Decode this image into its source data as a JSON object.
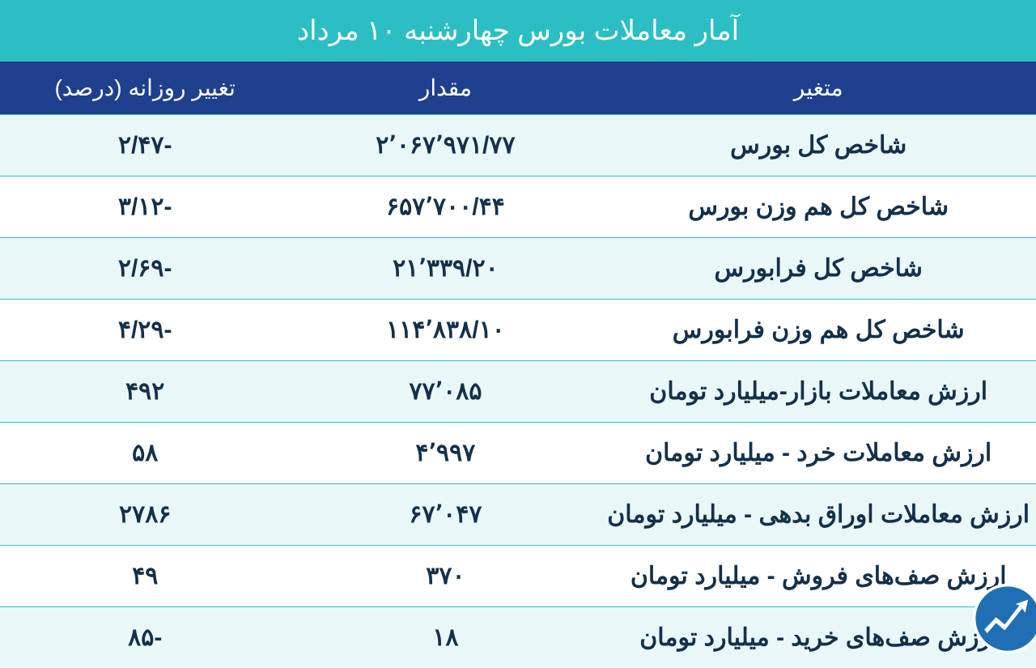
{
  "title": "آمار معاملات بورس چهارشنبه ۱۰ مرداد",
  "title_bg": "#2bbfc3",
  "title_color": "#ffffff",
  "title_fontsize": 34,
  "header_bg": "#1f3f8f",
  "header_color": "#ffffff",
  "header_fontsize": 28,
  "columns": [
    "متغیر",
    "مقدار",
    "تغییر روزانه (درصد)"
  ],
  "row_alt_bg": "#e9f7f8",
  "row_bg": "#ffffff",
  "row_text_color": "#14304a",
  "row_fontsize": 30,
  "border_color": "#2bbfc3",
  "rows": [
    {
      "variable": "شاخص کل بورس",
      "value": "۲٬۰۶۷٬۹۷۱/۷۷",
      "change": "-۲/۴۷"
    },
    {
      "variable": "شاخص کل هم وزن بورس",
      "value": "۶۵۷٬۷۰۰/۴۴",
      "change": "-۳/۱۲"
    },
    {
      "variable": "شاخص کل فرابورس",
      "value": "۲۱٬۳۳۹/۲۰",
      "change": "-۲/۶۹"
    },
    {
      "variable": "شاخص کل هم وزن فرابورس",
      "value": "۱۱۴٬۸۳۸/۱۰",
      "change": "-۴/۲۹"
    },
    {
      "variable": "ارزش معاملات بازار-میلیارد تومان",
      "value": "۷۷٬۰۸۵",
      "change": "۴۹۲"
    },
    {
      "variable": "ارزش معاملات خرد - میلیارد تومان",
      "value": "۴٬۹۹۷",
      "change": "۵۸"
    },
    {
      "variable": "ارزش معاملات اوراق بدهی - میلیارد تومان",
      "value": "۶۷٬۰۴۷",
      "change": "۲۷۸۶"
    },
    {
      "variable": "ارزش صف‌های فروش - میلیارد تومان",
      "value": "۳۷۰",
      "change": "۴۹"
    },
    {
      "variable": "ارزش صف‌های خرید - میلیارد تومان",
      "value": "۱۸",
      "change": "-۸۵"
    }
  ],
  "col_widths": [
    "42%",
    "30%",
    "28%"
  ],
  "logo": {
    "circle_color": "#1f6fb5",
    "arrow_color": "#ffffff"
  }
}
